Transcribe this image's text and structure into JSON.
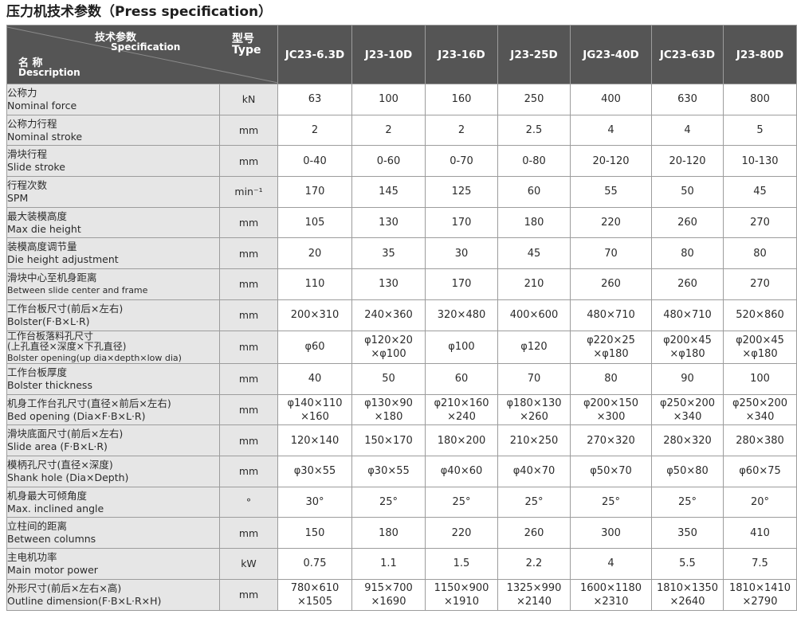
{
  "title": "压力机技术参数（Press specification）",
  "header": {
    "spec_cn": "技术参数",
    "spec_en": "Specification",
    "name_cn": "名 称",
    "name_en": "Description",
    "type_cn": "型号",
    "type_en": "Type",
    "models": [
      "JC23-6.3D",
      "J23-10D",
      "J23-16D",
      "J23-25D",
      "JG23-40D",
      "JC23-63D",
      "J23-80D"
    ]
  },
  "rows": [
    {
      "cn": "公称力",
      "en": "Nominal force",
      "unit": "kN",
      "values": [
        "63",
        "100",
        "160",
        "250",
        "400",
        "630",
        "800"
      ]
    },
    {
      "cn": "公称力行程",
      "en": "Nominal stroke",
      "unit": "mm",
      "values": [
        "2",
        "2",
        "2",
        "2.5",
        "4",
        "4",
        "5"
      ]
    },
    {
      "cn": "滑块行程",
      "en": "Slide stroke",
      "unit": "mm",
      "values": [
        "0-40",
        "0-60",
        "0-70",
        "0-80",
        "20-120",
        "20-120",
        "10-130"
      ]
    },
    {
      "cn": "行程次数",
      "en": "SPM",
      "unit": "min⁻¹",
      "values": [
        "170",
        "145",
        "125",
        "60",
        "55",
        "50",
        "45"
      ]
    },
    {
      "cn": "最大装模高度",
      "en": "Max die height",
      "unit": "mm",
      "values": [
        "105",
        "130",
        "170",
        "180",
        "220",
        "260",
        "270"
      ]
    },
    {
      "cn": "装模高度调节量",
      "en": "Die height adjustment",
      "unit": "mm",
      "values": [
        "20",
        "35",
        "30",
        "45",
        "70",
        "80",
        "80"
      ]
    },
    {
      "cn": "滑块中心至机身距离",
      "en": "Between slide center and frame",
      "unit": "mm",
      "values": [
        "110",
        "130",
        "170",
        "210",
        "260",
        "260",
        "270"
      ]
    },
    {
      "cn": "工作台板尺寸(前后×左右)",
      "en": "Bolster(F·B×L·R)",
      "unit": "mm",
      "values": [
        "200×310",
        "240×360",
        "320×480",
        "400×600",
        "480×710",
        "480×710",
        "520×860"
      ]
    },
    {
      "cn": "工作台板落料孔尺寸",
      "cn2": "(上孔直径×深度×下孔直径)",
      "en": "Bolster opening(up dia×depth×low dia)",
      "unit": "mm",
      "values": [
        "φ60",
        "φ120×20\n×φ100",
        "φ100",
        "φ120",
        "φ220×25\n×φ180",
        "φ200×45\n×φ180",
        "φ200×45\n×φ180"
      ]
    },
    {
      "cn": "工作台板厚度",
      "en": "Bolster thickness",
      "unit": "mm",
      "values": [
        "40",
        "50",
        "60",
        "70",
        "80",
        "90",
        "100"
      ]
    },
    {
      "cn": "机身工作台孔尺寸(直径×前后×左右)",
      "en": "Bed opening (Dia×F·B×L·R)",
      "unit": "mm",
      "values": [
        "φ140×110\n×160",
        "φ130×90\n×180",
        "φ210×160\n×240",
        "φ180×130\n×260",
        "φ200×150\n×300",
        "φ250×200\n×340",
        "φ250×200\n×340"
      ]
    },
    {
      "cn": "滑块底面尺寸(前后×左右)",
      "en": "Slide area (F·B×L·R)",
      "unit": "mm",
      "values": [
        "120×140",
        "150×170",
        "180×200",
        "210×250",
        "270×320",
        "280×320",
        "280×380"
      ]
    },
    {
      "cn": "模柄孔尺寸(直径×深度)",
      "en": "Shank hole (Dia×Depth)",
      "unit": "mm",
      "values": [
        "φ30×55",
        "φ30×55",
        "φ40×60",
        "φ40×70",
        "φ50×70",
        "φ50×80",
        "φ60×75"
      ]
    },
    {
      "cn": "机身最大可倾角度",
      "en": "Max. inclined angle",
      "unit": "°",
      "values": [
        "30°",
        "25°",
        "25°",
        "25°",
        "25°",
        "25°",
        "20°"
      ]
    },
    {
      "cn": "立柱间的距离",
      "en": "Between columns",
      "unit": "mm",
      "values": [
        "150",
        "180",
        "220",
        "260",
        "300",
        "350",
        "410"
      ]
    },
    {
      "cn": "主电机功率",
      "en": "Main motor power",
      "unit": "kW",
      "values": [
        "0.75",
        "1.1",
        "1.5",
        "2.2",
        "4",
        "5.5",
        "7.5"
      ]
    },
    {
      "cn": "外形尺寸(前后×左右×高)",
      "en": "Outline dimension(F·B×L·R×H)",
      "unit": "mm",
      "values": [
        "780×610\n×1505",
        "915×700\n×1690",
        "1150×900\n×1910",
        "1325×990\n×2140",
        "1600×1180\n×2310",
        "1810×1350\n×2640",
        "1810×1410\n×2790"
      ]
    }
  ]
}
